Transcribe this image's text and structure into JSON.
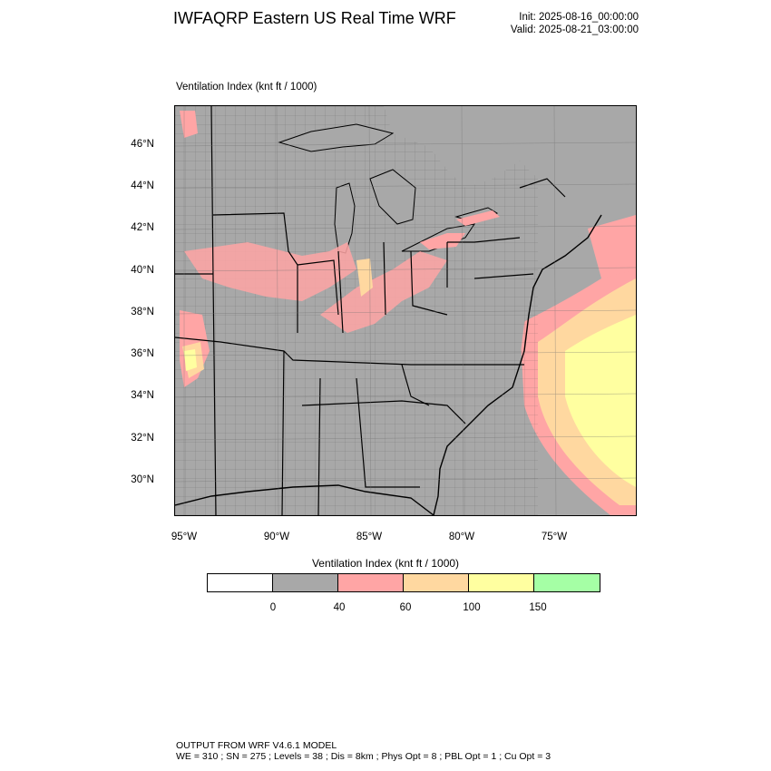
{
  "header": {
    "title": "IWFAQRP Eastern US Real Time WRF",
    "init": "Init: 2025-08-16_00:00:00",
    "valid": "Valid: 2025-08-21_03:00:00"
  },
  "plot": {
    "field_label": "Ventilation Index   (knt ft / 1000)"
  },
  "axes": {
    "lat_labels": [
      "46°N",
      "44°N",
      "42°N",
      "40°N",
      "38°N",
      "36°N",
      "34°N",
      "32°N",
      "30°N"
    ],
    "lon_labels": [
      "95°W",
      "90°W",
      "85°W",
      "80°W",
      "75°W"
    ]
  },
  "legend": {
    "title": "Ventilation Index  (knt ft / 1000)",
    "colors": [
      "#ffffff",
      "#a8a8a8",
      "#ffa5a5",
      "#ffd8a0",
      "#ffffa0",
      "#a5ffa5"
    ],
    "ticks": [
      "0",
      "40",
      "60",
      "100",
      "150"
    ]
  },
  "footer": {
    "line1": "OUTPUT FROM WRF V4.6.1 MODEL",
    "line2": "WE = 310 ; SN = 275 ; Levels = 38 ; Dis = 8km ; Phys Opt = 8 ; PBL Opt = 1 ; Cu Opt = 3"
  }
}
